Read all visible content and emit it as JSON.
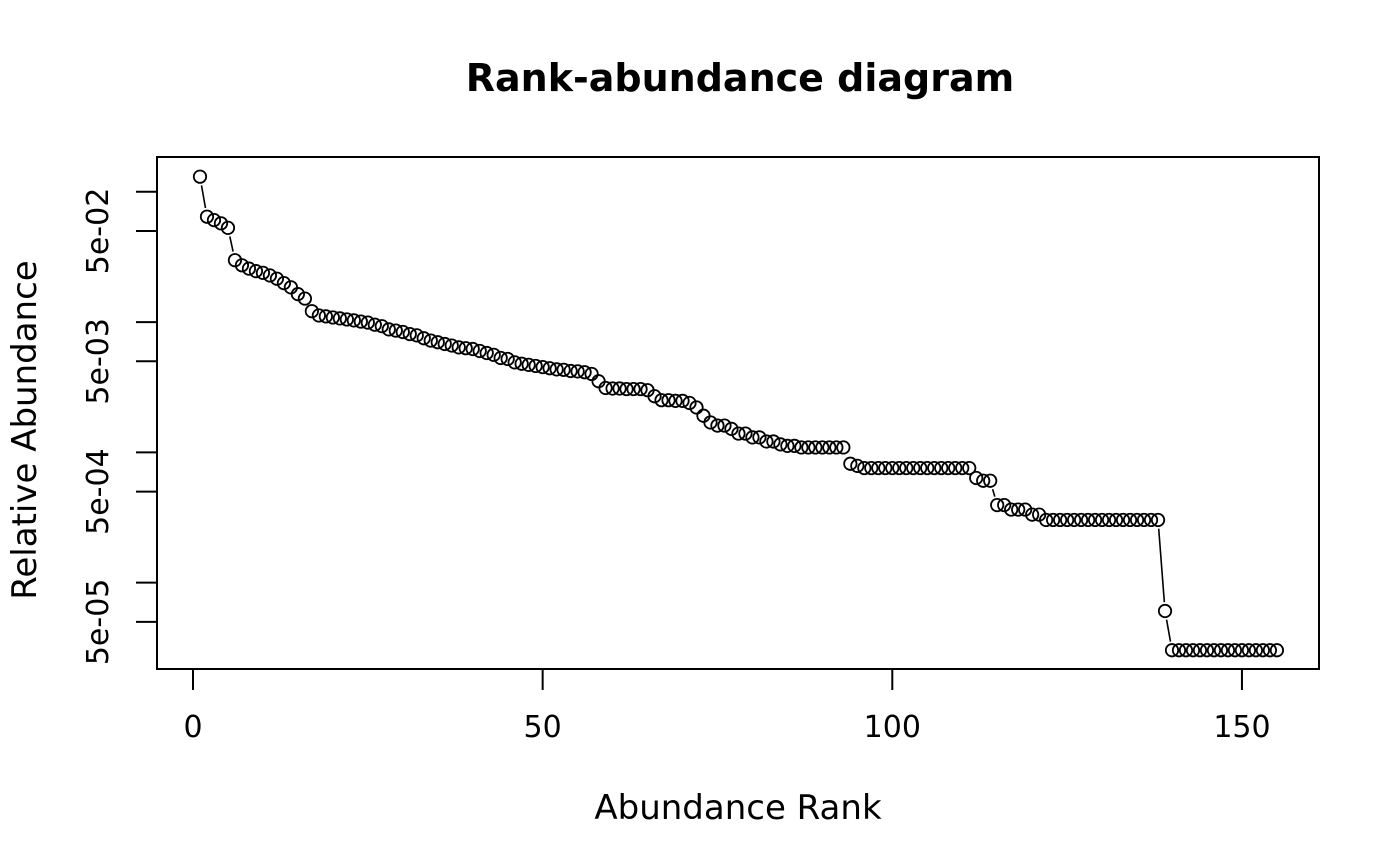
{
  "title": "Rank-abundance diagram",
  "colors": {
    "foreground": "#000000",
    "background": "#ffffff"
  },
  "chart_data": {
    "type": "line",
    "marker": "open-circle",
    "title": "Rank-abundance diagram",
    "xlabel": "Abundance Rank",
    "ylabel": "Relative Abundance",
    "x_axis": {
      "label": "Abundance Rank",
      "ticks": [
        0,
        50,
        100,
        150
      ],
      "tick_labels": [
        "0",
        "50",
        "100",
        "150"
      ],
      "range": [
        0,
        160
      ]
    },
    "y_axis": {
      "label": "Relative Abundance",
      "scale": "log",
      "tick_values": [
        0.1,
        0.05,
        0.01,
        0.005,
        0.001,
        0.0005,
        0.0001,
        5e-05
      ],
      "tick_labels": [
        "",
        "5e-02",
        "",
        "5e-03",
        "",
        "5e-04",
        "",
        "5e-05"
      ],
      "range": [
        2e-05,
        0.15
      ]
    },
    "x_start_rank": 1,
    "series": [
      {
        "name": "relative_abundance",
        "values": [
          0.1306,
          0.06439,
          0.06061,
          0.05727,
          0.05288,
          0.02985,
          0.02727,
          0.0257,
          0.02461,
          0.02388,
          0.02279,
          0.02152,
          0.01991,
          0.01848,
          0.01639,
          0.01515,
          0.01212,
          0.01124,
          0.01106,
          0.01085,
          0.01067,
          0.01048,
          0.0103,
          0.01009,
          0.00991,
          0.009545,
          0.009303,
          0.008788,
          0.008606,
          0.008394,
          0.008091,
          0.007909,
          0.007515,
          0.007212,
          0.007,
          0.006788,
          0.006606,
          0.006394,
          0.006303,
          0.006212,
          0.006,
          0.005788,
          0.005606,
          0.005303,
          0.005212,
          0.004909,
          0.004788,
          0.004697,
          0.004606,
          0.004515,
          0.004424,
          0.004333,
          0.004303,
          0.004212,
          0.004182,
          0.004121,
          0.004,
          0.003515,
          0.003121,
          0.003091,
          0.003091,
          0.003061,
          0.003061,
          0.003061,
          0.003,
          0.002697,
          0.002515,
          0.002515,
          0.002485,
          0.002485,
          0.002394,
          0.002212,
          0.001909,
          0.001697,
          0.001606,
          0.001606,
          0.001515,
          0.001394,
          0.001394,
          0.001303,
          0.001303,
          0.001212,
          0.001212,
          0.001152,
          0.001121,
          0.001121,
          0.001091,
          0.001091,
          0.001091,
          0.001091,
          0.001091,
          0.001091,
          0.001091,
          0.000818,
          0.000788,
          0.000758,
          0.000758,
          0.000758,
          0.000758,
          0.000758,
          0.000758,
          0.000758,
          0.000758,
          0.000758,
          0.000758,
          0.000758,
          0.000758,
          0.000758,
          0.000758,
          0.000758,
          0.000758,
          0.000636,
          0.000606,
          0.000606,
          0.000394,
          0.000394,
          0.000364,
          0.000364,
          0.000364,
          0.000333,
          0.000333,
          0.000303,
          0.000303,
          0.000303,
          0.000303,
          0.000303,
          0.000303,
          0.000303,
          0.000303,
          0.000303,
          0.000303,
          0.000303,
          0.000303,
          0.000303,
          0.000303,
          0.000303,
          0.000303,
          0.000303,
          6.06e-05,
          3.03e-05,
          3.03e-05,
          3.03e-05,
          3.03e-05,
          3.03e-05,
          3.03e-05,
          3.03e-05,
          3.03e-05,
          3.03e-05,
          3.03e-05,
          3.03e-05,
          3.03e-05,
          3.03e-05,
          3.03e-05,
          3.03e-05,
          3.03e-05
        ]
      }
    ]
  }
}
